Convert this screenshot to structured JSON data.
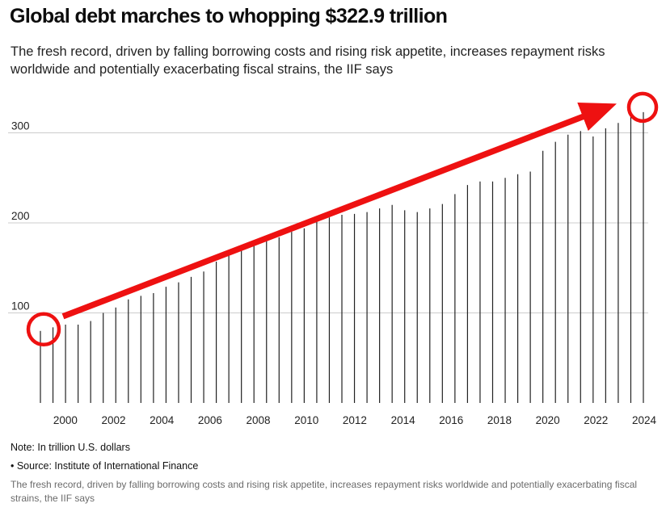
{
  "title": "Global debt marches to whopping $322.9 trillion",
  "subtitle": "The fresh record, driven by falling borrowing costs and rising risk appetite, increases repayment risks worldwide and potentially exacerbating fiscal strains, the IIF says",
  "note": "Note: In trillion U.S. dollars",
  "source": "• Source: Institute of International Finance",
  "caption": "The fresh record, driven by falling borrowing costs and rising risk appetite, increases repayment risks worldwide and potentially exacerbating fiscal strains, the IIF says",
  "colors": {
    "bar": "#222222",
    "gridline": "#cccccc",
    "annotation": "#ee1111"
  },
  "chart_data": {
    "type": "bar",
    "title": "Global debt marches to whopping $322.9 trillion",
    "xlabel": "",
    "ylabel": "",
    "unit": "trillion U.S. dollars",
    "ylim": [
      0,
      350
    ],
    "yticks": [
      100,
      200,
      300
    ],
    "grid": true,
    "xticks": [
      "2000",
      "2002",
      "2004",
      "2006",
      "2008",
      "2010",
      "2012",
      "2014",
      "2016",
      "2018",
      "2020",
      "2022",
      "2024"
    ],
    "bars": [
      {
        "label": "1999",
        "value": 80
      },
      {
        "label": "2000",
        "value": 84
      },
      {
        "label": "2001",
        "value": 87
      },
      {
        "label": "2001.5",
        "value": 87
      },
      {
        "label": "2002",
        "value": 91
      },
      {
        "label": "2002.5",
        "value": 100
      },
      {
        "label": "2003",
        "value": 106
      },
      {
        "label": "2003.5",
        "value": 115
      },
      {
        "label": "2004",
        "value": 119
      },
      {
        "label": "2004.5",
        "value": 122
      },
      {
        "label": "2005",
        "value": 129
      },
      {
        "label": "2005.5",
        "value": 134
      },
      {
        "label": "2006",
        "value": 140
      },
      {
        "label": "2006.5",
        "value": 146
      },
      {
        "label": "2007",
        "value": 157
      },
      {
        "label": "2007.5",
        "value": 165
      },
      {
        "label": "2008",
        "value": 170
      },
      {
        "label": "2008.5",
        "value": 175
      },
      {
        "label": "2009",
        "value": 180
      },
      {
        "label": "2009.5",
        "value": 184
      },
      {
        "label": "2010",
        "value": 190
      },
      {
        "label": "2010.5",
        "value": 194
      },
      {
        "label": "2011",
        "value": 202
      },
      {
        "label": "2011.5",
        "value": 206
      },
      {
        "label": "2012",
        "value": 209
      },
      {
        "label": "2012.5",
        "value": 210
      },
      {
        "label": "2013",
        "value": 212
      },
      {
        "label": "2013.5",
        "value": 216
      },
      {
        "label": "2014",
        "value": 220
      },
      {
        "label": "2014.5",
        "value": 214
      },
      {
        "label": "2015",
        "value": 212
      },
      {
        "label": "2015.5",
        "value": 216
      },
      {
        "label": "2016",
        "value": 221
      },
      {
        "label": "2016.5",
        "value": 232
      },
      {
        "label": "2017",
        "value": 242
      },
      {
        "label": "2017.5",
        "value": 246
      },
      {
        "label": "2018",
        "value": 246
      },
      {
        "label": "2018.5",
        "value": 250
      },
      {
        "label": "2019",
        "value": 254
      },
      {
        "label": "2019.5",
        "value": 257
      },
      {
        "label": "2020",
        "value": 280
      },
      {
        "label": "2020.5",
        "value": 290
      },
      {
        "label": "2021",
        "value": 298
      },
      {
        "label": "2021.5",
        "value": 302
      },
      {
        "label": "2022",
        "value": 296
      },
      {
        "label": "2022.5",
        "value": 305
      },
      {
        "label": "2023",
        "value": 311
      },
      {
        "label": "2023.5",
        "value": 318
      },
      {
        "label": "2024",
        "value": 323
      }
    ],
    "annotations": [
      {
        "type": "circle",
        "at": "1999"
      },
      {
        "type": "arrow",
        "from": "1999",
        "to": "2024"
      },
      {
        "type": "circle",
        "at": "2024"
      }
    ]
  }
}
